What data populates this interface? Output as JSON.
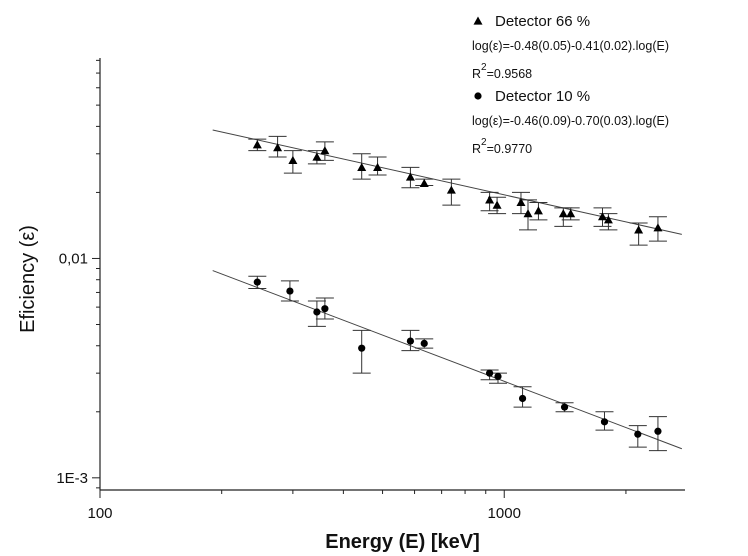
{
  "chart_data": {
    "type": "scatter",
    "xlabel": "Energy (E) [keV]",
    "ylabel": "Eficiency (ε)",
    "x_scale": "log",
    "y_scale": "log",
    "xlim": [
      100,
      2800
    ],
    "ylim": [
      0.00088,
      0.082
    ],
    "x_ticks": [
      {
        "value": 100,
        "label": "100"
      },
      {
        "value": 1000,
        "label": "1000"
      }
    ],
    "y_ticks": [
      {
        "value": 0.01,
        "label": "0,01"
      },
      {
        "value": 0.001,
        "label": "1E-3"
      }
    ],
    "grid": false,
    "legend_position": "top-right",
    "series": [
      {
        "name": "Detector 66 %",
        "marker": "triangle",
        "fit_equation": "log(ε)=-0.48(0.05)-0.41(0.02).log(E)",
        "r_squared_label": "R",
        "r_squared_sup": "2",
        "r_squared_value": "=0.9568",
        "fit": {
          "intercept": -0.48,
          "slope": -0.41,
          "x_range": [
            190,
            2750
          ]
        },
        "points": [
          {
            "x": 245,
            "y": 0.033,
            "lo": 0.031,
            "hi": 0.035
          },
          {
            "x": 275,
            "y": 0.032,
            "lo": 0.029,
            "hi": 0.036
          },
          {
            "x": 300,
            "y": 0.028,
            "lo": 0.0245,
            "hi": 0.031
          },
          {
            "x": 344,
            "y": 0.029,
            "lo": 0.027,
            "hi": 0.031
          },
          {
            "x": 360,
            "y": 0.031,
            "lo": 0.028,
            "hi": 0.034
          },
          {
            "x": 444,
            "y": 0.026,
            "lo": 0.023,
            "hi": 0.03
          },
          {
            "x": 486,
            "y": 0.026,
            "lo": 0.024,
            "hi": 0.029
          },
          {
            "x": 586,
            "y": 0.0235,
            "lo": 0.021,
            "hi": 0.026
          },
          {
            "x": 634,
            "y": 0.022,
            "lo": 0.0215,
            "hi": 0.023
          },
          {
            "x": 740,
            "y": 0.0205,
            "lo": 0.0175,
            "hi": 0.023
          },
          {
            "x": 920,
            "y": 0.0185,
            "lo": 0.0165,
            "hi": 0.02
          },
          {
            "x": 960,
            "y": 0.0175,
            "lo": 0.016,
            "hi": 0.019
          },
          {
            "x": 1100,
            "y": 0.018,
            "lo": 0.016,
            "hi": 0.02
          },
          {
            "x": 1145,
            "y": 0.016,
            "lo": 0.0135,
            "hi": 0.0185
          },
          {
            "x": 1215,
            "y": 0.0165,
            "lo": 0.015,
            "hi": 0.018
          },
          {
            "x": 1400,
            "y": 0.016,
            "lo": 0.014,
            "hi": 0.017
          },
          {
            "x": 1460,
            "y": 0.016,
            "lo": 0.015,
            "hi": 0.017
          },
          {
            "x": 1750,
            "y": 0.0155,
            "lo": 0.014,
            "hi": 0.017
          },
          {
            "x": 1810,
            "y": 0.015,
            "lo": 0.0135,
            "hi": 0.016
          },
          {
            "x": 2150,
            "y": 0.0135,
            "lo": 0.0115,
            "hi": 0.0145
          },
          {
            "x": 2400,
            "y": 0.0138,
            "lo": 0.012,
            "hi": 0.0155
          }
        ]
      },
      {
        "name": "Detector 10 %",
        "marker": "circle",
        "fit_equation": "log(ε)=-0.46(0.09)-0.70(0.03).log(E)",
        "r_squared_label": "R",
        "r_squared_sup": "2",
        "r_squared_value": "=0.9770",
        "fit": {
          "intercept": -0.46,
          "slope": -0.7,
          "x_range": [
            190,
            2750
          ]
        },
        "points": [
          {
            "x": 245,
            "y": 0.0078,
            "lo": 0.0073,
            "hi": 0.0083
          },
          {
            "x": 295,
            "y": 0.0071,
            "lo": 0.0064,
            "hi": 0.0079
          },
          {
            "x": 344,
            "y": 0.0057,
            "lo": 0.0049,
            "hi": 0.0064
          },
          {
            "x": 360,
            "y": 0.0059,
            "lo": 0.0053,
            "hi": 0.0066
          },
          {
            "x": 444,
            "y": 0.0039,
            "lo": 0.003,
            "hi": 0.0047
          },
          {
            "x": 586,
            "y": 0.0042,
            "lo": 0.0038,
            "hi": 0.0047
          },
          {
            "x": 634,
            "y": 0.0041,
            "lo": 0.0039,
            "hi": 0.0043
          },
          {
            "x": 920,
            "y": 0.003,
            "lo": 0.0028,
            "hi": 0.0031
          },
          {
            "x": 965,
            "y": 0.0029,
            "lo": 0.0027,
            "hi": 0.003
          },
          {
            "x": 1110,
            "y": 0.0023,
            "lo": 0.0021,
            "hi": 0.0026
          },
          {
            "x": 1410,
            "y": 0.0021,
            "lo": 0.002,
            "hi": 0.0022
          },
          {
            "x": 1770,
            "y": 0.0018,
            "lo": 0.00165,
            "hi": 0.002
          },
          {
            "x": 2140,
            "y": 0.00158,
            "lo": 0.00138,
            "hi": 0.00173
          },
          {
            "x": 2400,
            "y": 0.00163,
            "lo": 0.00133,
            "hi": 0.0019
          }
        ]
      }
    ]
  }
}
